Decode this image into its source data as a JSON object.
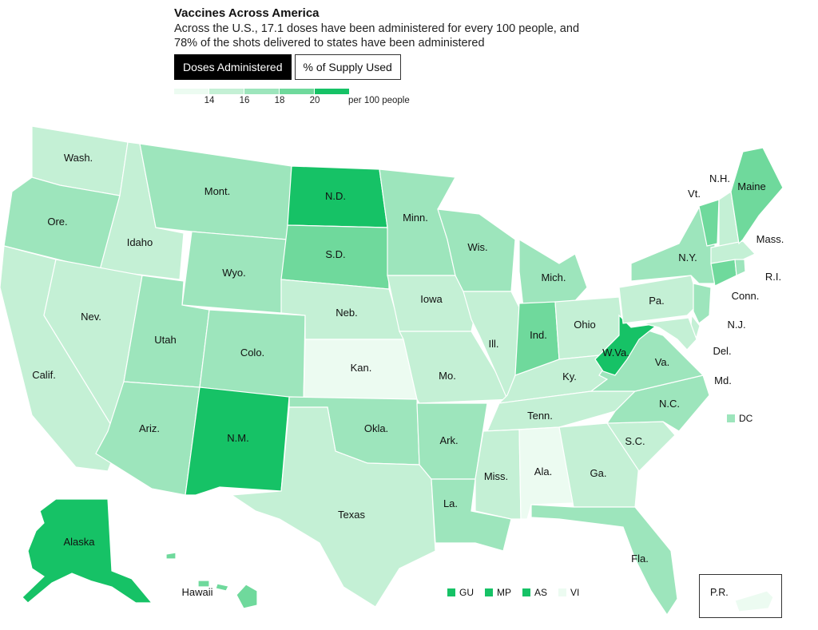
{
  "header": {
    "title": "Vaccines Across America",
    "subtitle": "Across the U.S., 17.1 doses have been administered for every 100 people, and 78% of the shots delivered to states have been administered"
  },
  "tabs": [
    {
      "label": "Doses Administered",
      "active": true
    },
    {
      "label": "% of Supply Used",
      "active": false
    }
  ],
  "legend": {
    "colors": [
      "#ecfbf1",
      "#c4f0d5",
      "#9de5bc",
      "#6fd99c",
      "#16c266"
    ],
    "ticks": [
      "14",
      "16",
      "18",
      "20"
    ],
    "unit": "per 100 people"
  },
  "colors": {
    "c1": "#ecfbf1",
    "c2": "#c4f0d5",
    "c3": "#9de5bc",
    "c4": "#6fd99c",
    "c5": "#16c266"
  },
  "states": {
    "wa": {
      "label": "Wash.",
      "level": 2
    },
    "or": {
      "label": "Ore.",
      "level": 3
    },
    "ca": {
      "label": "Calif.",
      "level": 2
    },
    "id": {
      "label": "Idaho",
      "level": 2
    },
    "nv": {
      "label": "Nev.",
      "level": 2
    },
    "mt": {
      "label": "Mont.",
      "level": 3
    },
    "wy": {
      "label": "Wyo.",
      "level": 3
    },
    "ut": {
      "label": "Utah",
      "level": 3
    },
    "az": {
      "label": "Ariz.",
      "level": 3
    },
    "co": {
      "label": "Colo.",
      "level": 3
    },
    "nm": {
      "label": "N.M.",
      "level": 5
    },
    "nd": {
      "label": "N.D.",
      "level": 5
    },
    "sd": {
      "label": "S.D.",
      "level": 4
    },
    "ne": {
      "label": "Neb.",
      "level": 2
    },
    "ks": {
      "label": "Kan.",
      "level": 1
    },
    "ok": {
      "label": "Okla.",
      "level": 3
    },
    "tx": {
      "label": "Texas",
      "level": 2
    },
    "mn": {
      "label": "Minn.",
      "level": 3
    },
    "ia": {
      "label": "Iowa",
      "level": 2
    },
    "mo": {
      "label": "Mo.",
      "level": 2
    },
    "ar": {
      "label": "Ark.",
      "level": 3
    },
    "la": {
      "label": "La.",
      "level": 3
    },
    "wi": {
      "label": "Wis.",
      "level": 3
    },
    "il": {
      "label": "Ill.",
      "level": 2
    },
    "mi": {
      "label": "Mich.",
      "level": 3
    },
    "in": {
      "label": "Ind.",
      "level": 4
    },
    "oh": {
      "label": "Ohio",
      "level": 2
    },
    "ky": {
      "label": "Ky.",
      "level": 2
    },
    "tn": {
      "label": "Tenn.",
      "level": 2
    },
    "ms": {
      "label": "Miss.",
      "level": 2
    },
    "al": {
      "label": "Ala.",
      "level": 1
    },
    "ga": {
      "label": "Ga.",
      "level": 2
    },
    "fl": {
      "label": "Fla.",
      "level": 3
    },
    "sc": {
      "label": "S.C.",
      "level": 2
    },
    "nc": {
      "label": "N.C.",
      "level": 3
    },
    "va": {
      "label": "Va.",
      "level": 3
    },
    "wv": {
      "label": "W.Va.",
      "level": 5
    },
    "pa": {
      "label": "Pa.",
      "level": 2
    },
    "ny": {
      "label": "N.Y.",
      "level": 3
    },
    "nj": {
      "label": "N.J.",
      "level": 3
    },
    "de": {
      "label": "Del.",
      "level": 2
    },
    "md": {
      "label": "Md.",
      "level": 2
    },
    "ct": {
      "label": "Conn.",
      "level": 4
    },
    "ri": {
      "label": "R.I.",
      "level": 3
    },
    "ma": {
      "label": "Mass.",
      "level": 2
    },
    "vt": {
      "label": "Vt.",
      "level": 4
    },
    "nh": {
      "label": "N.H.",
      "level": 2
    },
    "me": {
      "label": "Maine",
      "level": 4
    },
    "ak": {
      "label": "Alaska",
      "level": 5
    },
    "hi": {
      "label": "Hawaii",
      "level": 4
    },
    "dc": {
      "label": "DC",
      "level": 3
    },
    "pr": {
      "label": "P.R.",
      "level": 1
    }
  },
  "territories": [
    {
      "label": "GU",
      "level": 5
    },
    {
      "label": "MP",
      "level": 5
    },
    {
      "label": "AS",
      "level": 5
    },
    {
      "label": "VI",
      "level": 1
    }
  ]
}
